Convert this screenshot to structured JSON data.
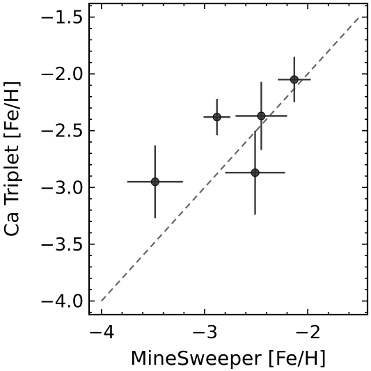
{
  "chart_data": {
    "type": "scatter",
    "title": "",
    "xlabel": "MineSweeper [Fe/H]",
    "ylabel": "Ca Triplet [Fe/H]",
    "xlim": [
      -4.12,
      -1.42
    ],
    "ylim": [
      -4.12,
      -1.38
    ],
    "x_ticks": [
      -4,
      -3,
      -2
    ],
    "x_tick_labels": [
      "−4",
      "−3",
      "−2"
    ],
    "y_ticks": [
      -4.0,
      -3.5,
      -3.0,
      -2.5,
      -2.0,
      -1.5
    ],
    "y_tick_labels": [
      "−4.0",
      "−3.5",
      "−3.0",
      "−2.5",
      "−2.0",
      "−1.5"
    ],
    "points": [
      {
        "x": -3.48,
        "y": -2.95,
        "xerr": 0.27,
        "yerr": 0.32
      },
      {
        "x": -2.88,
        "y": -2.38,
        "xerr": 0.13,
        "yerr": 0.16
      },
      {
        "x": -2.51,
        "y": -2.87,
        "xerr": 0.29,
        "yerr": 0.37
      },
      {
        "x": -2.45,
        "y": -2.37,
        "xerr": 0.25,
        "yerr": 0.3
      },
      {
        "x": -2.13,
        "y": -2.05,
        "xerr": 0.16,
        "yerr": 0.2
      }
    ],
    "reference_line": {
      "x": [
        -4.0,
        -1.5
      ],
      "y": [
        -4.0,
        -1.5
      ],
      "style": "dashed",
      "color": "#666666"
    },
    "grid": false,
    "legend": "none"
  }
}
